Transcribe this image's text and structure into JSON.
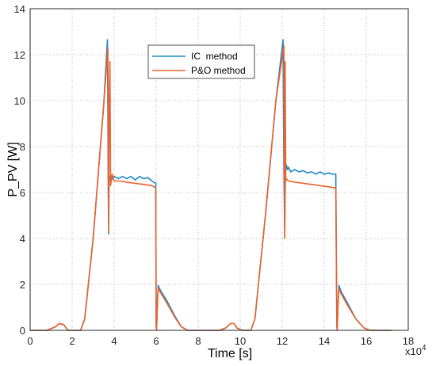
{
  "chart_data": {
    "type": "line",
    "xlabel": "Time [s]",
    "ylabel": "P_PV [W]",
    "x_exponent_label": "x10",
    "x_exponent_power": "4",
    "xlim": [
      0,
      18
    ],
    "ylim": [
      0,
      14
    ],
    "x_ticks": [
      0,
      2,
      4,
      6,
      8,
      10,
      12,
      14,
      16,
      18
    ],
    "y_ticks": [
      0,
      2,
      4,
      6,
      8,
      10,
      12,
      14
    ],
    "grid": true,
    "legend_position": "upper-center",
    "series": [
      {
        "name": "IC  method",
        "color": "#1f88c8",
        "x": [
          0,
          0.8,
          1.2,
          1.4,
          1.6,
          1.8,
          2.0,
          2.4,
          2.6,
          3.0,
          3.5,
          3.68,
          3.72,
          3.74,
          3.76,
          3.8,
          3.85,
          3.9,
          4.0,
          4.2,
          4.4,
          4.6,
          4.8,
          5.0,
          5.2,
          5.4,
          5.6,
          5.8,
          5.98,
          6.0,
          6.02,
          6.06,
          6.1,
          6.2,
          6.5,
          6.9,
          7.2,
          7.5,
          8.0,
          9.0,
          9.3,
          9.55,
          9.7,
          9.85,
          10.1,
          10.5,
          10.7,
          11.2,
          11.7,
          12.04,
          12.08,
          12.12,
          12.15,
          12.2,
          12.25,
          12.3,
          12.4,
          12.6,
          12.8,
          13.0,
          13.2,
          13.4,
          13.6,
          13.8,
          14.0,
          14.2,
          14.4,
          14.55,
          14.6,
          14.62,
          14.66,
          14.7,
          14.8,
          15.1,
          15.5,
          15.9,
          16.2,
          17.2
        ],
        "y": [
          0,
          0,
          0.15,
          0.3,
          0.25,
          0,
          0,
          0,
          0.5,
          4,
          9.8,
          12.65,
          6,
          4.2,
          6.5,
          6.7,
          6.5,
          6.6,
          6.7,
          6.6,
          6.7,
          6.6,
          6.7,
          6.55,
          6.7,
          6.6,
          6.65,
          6.5,
          6.4,
          0.2,
          0,
          1.3,
          1.95,
          1.75,
          1.3,
          0.6,
          0.15,
          0,
          0,
          0,
          0.1,
          0.3,
          0.3,
          0.1,
          0,
          0,
          0.5,
          5,
          10,
          12.65,
          7,
          4.2,
          6.8,
          7.2,
          7.0,
          7.1,
          6.9,
          7.0,
          6.9,
          6.95,
          6.85,
          6.9,
          6.8,
          6.9,
          6.8,
          6.85,
          6.8,
          6.8,
          0.2,
          0,
          1.3,
          1.95,
          1.7,
          1.2,
          0.5,
          0.1,
          0,
          0
        ]
      },
      {
        "name": "P&O method",
        "color": "#e8632e",
        "x": [
          0,
          0.8,
          1.2,
          1.4,
          1.6,
          1.8,
          2.0,
          2.4,
          2.6,
          3.0,
          3.5,
          3.7,
          3.72,
          3.74,
          3.76,
          3.8,
          3.83,
          3.86,
          3.9,
          4.0,
          4.3,
          4.6,
          5.0,
          5.4,
          5.8,
          5.98,
          6.0,
          6.02,
          6.06,
          6.1,
          6.2,
          6.5,
          6.9,
          7.2,
          7.5,
          8.0,
          9.0,
          9.3,
          9.55,
          9.7,
          9.85,
          10.1,
          10.5,
          10.7,
          11.2,
          11.7,
          12.08,
          12.1,
          12.12,
          12.14,
          12.17,
          12.2,
          12.3,
          12.6,
          13.0,
          13.4,
          13.8,
          14.2,
          14.55,
          14.6,
          14.62,
          14.66,
          14.7,
          14.8,
          15.1,
          15.5,
          15.9,
          16.2,
          17.2
        ],
        "y": [
          0,
          0,
          0.15,
          0.3,
          0.25,
          0,
          0,
          0,
          0.5,
          4,
          9.8,
          12.3,
          6.5,
          4.3,
          9.5,
          11.7,
          6.3,
          6.5,
          6.8,
          6.5,
          6.5,
          6.45,
          6.4,
          6.35,
          6.3,
          6.2,
          0.2,
          0,
          1.2,
          1.85,
          1.65,
          1.2,
          0.55,
          0.15,
          0,
          0,
          0,
          0.1,
          0.3,
          0.3,
          0.1,
          0,
          0,
          0.5,
          5,
          10,
          12.4,
          6.5,
          4.0,
          11.7,
          6.5,
          6.6,
          6.5,
          6.45,
          6.4,
          6.35,
          6.3,
          6.25,
          6.2,
          0.2,
          0,
          1.2,
          1.8,
          1.6,
          1.1,
          0.5,
          0.1,
          0,
          0
        ]
      }
    ]
  }
}
